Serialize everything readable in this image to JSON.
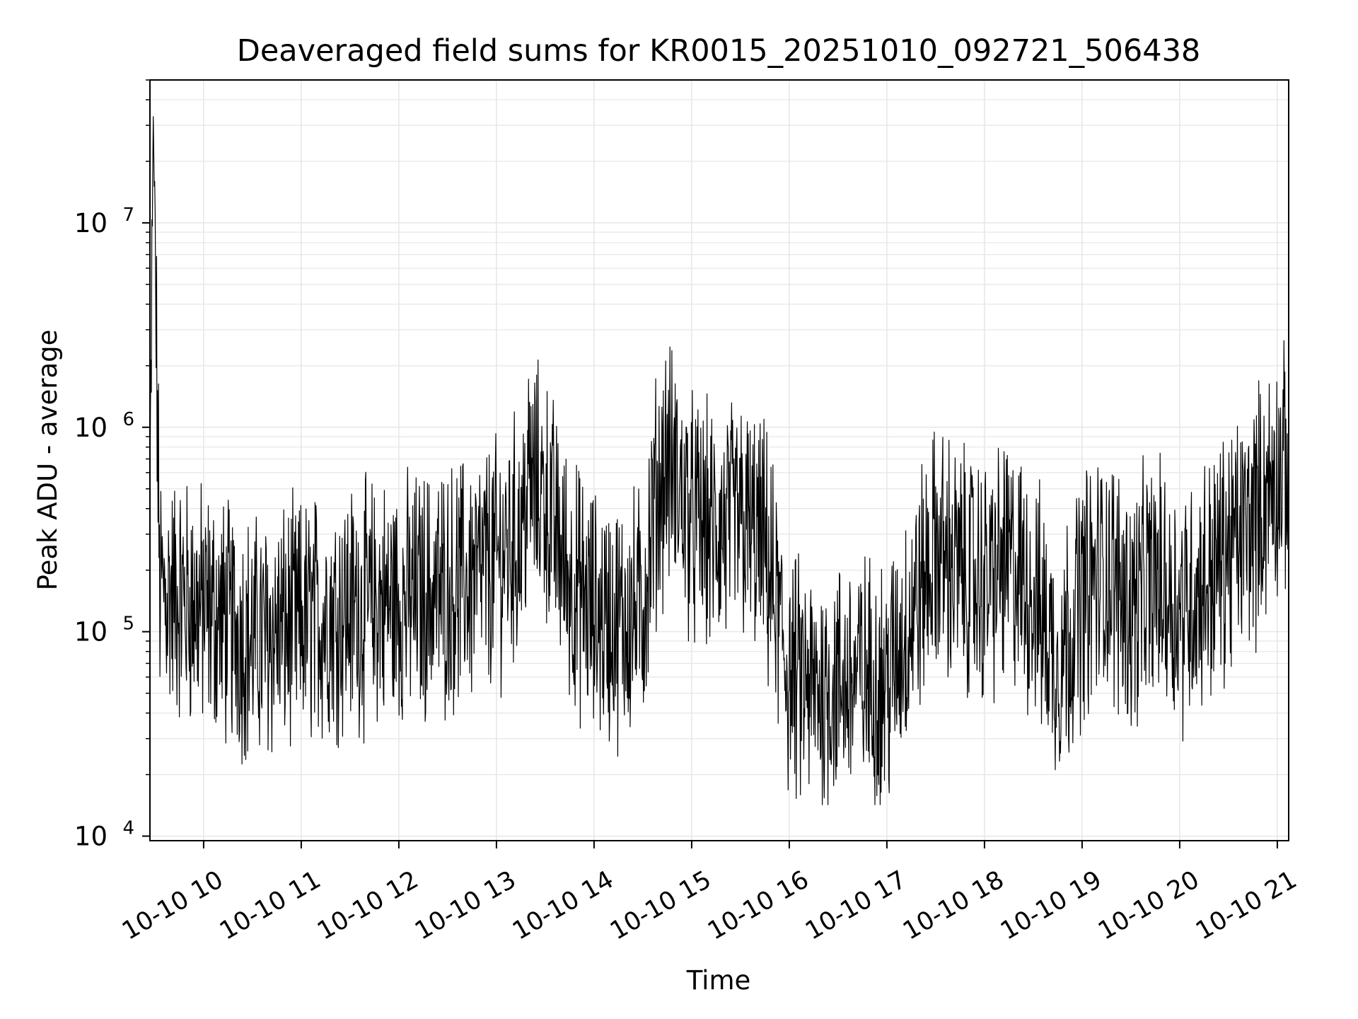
{
  "chart_data": {
    "type": "line",
    "title": "Deaveraged field sums for KR0015_20251010_092721_506438",
    "xlabel": "Time",
    "ylabel": "Peak ADU - average",
    "yscale": "log",
    "ylim": [
      9500,
      50000000
    ],
    "xlim": [
      "2025-10-10T09:27",
      "2025-10-10T21:07"
    ],
    "grid": true,
    "x_tick_labels": [
      "10-10 10",
      "10-10 11",
      "10-10 12",
      "10-10 13",
      "10-10 14",
      "10-10 15",
      "10-10 16",
      "10-10 17",
      "10-10 18",
      "10-10 19",
      "10-10 20",
      "10-10 21"
    ],
    "y_tick_labels": [
      {
        "value": 10000,
        "base": "10",
        "exp": "4"
      },
      {
        "value": 100000,
        "base": "10",
        "exp": "5"
      },
      {
        "value": 1000000,
        "base": "10",
        "exp": "6"
      },
      {
        "value": 10000000,
        "base": "10",
        "exp": "7"
      }
    ],
    "line_color": "#000000",
    "grid_color": "#e6e6e6",
    "series": [
      {
        "x": [
          "2025-10-10T09:27",
          "2025-10-10T09:29",
          "2025-10-10T09:33",
          "2025-10-10T09:40",
          "2025-10-10T09:50",
          "2025-10-10T10:00",
          "2025-10-10T10:15",
          "2025-10-10T10:30",
          "2025-10-10T10:45",
          "2025-10-10T11:00",
          "2025-10-10T11:15",
          "2025-10-10T11:30",
          "2025-10-10T11:45",
          "2025-10-10T12:00",
          "2025-10-10T12:15",
          "2025-10-10T12:30",
          "2025-10-10T12:45",
          "2025-10-10T13:00",
          "2025-10-10T13:15",
          "2025-10-10T13:20",
          "2025-10-10T13:30",
          "2025-10-10T13:45",
          "2025-10-10T14:00",
          "2025-10-10T14:15",
          "2025-10-10T14:30",
          "2025-10-10T14:37",
          "2025-10-10T14:45",
          "2025-10-10T15:00",
          "2025-10-10T15:15",
          "2025-10-10T15:30",
          "2025-10-10T15:45",
          "2025-10-10T16:00",
          "2025-10-10T16:15",
          "2025-10-10T16:30",
          "2025-10-10T16:45",
          "2025-10-10T17:00",
          "2025-10-10T17:15",
          "2025-10-10T17:30",
          "2025-10-10T17:45",
          "2025-10-10T18:00",
          "2025-10-10T18:15",
          "2025-10-10T18:30",
          "2025-10-10T18:45",
          "2025-10-10T19:00",
          "2025-10-10T19:15",
          "2025-10-10T19:30",
          "2025-10-10T19:45",
          "2025-10-10T20:00",
          "2025-10-10T20:15",
          "2025-10-10T20:30",
          "2025-10-10T20:45",
          "2025-10-10T21:00",
          "2025-10-10T21:07"
        ],
        "y": [
          300000,
          35000000,
          160000,
          150000,
          140000,
          130000,
          110000,
          90000,
          100000,
          110000,
          120000,
          130000,
          135000,
          140000,
          150000,
          160000,
          180000,
          220000,
          300000,
          550000,
          450000,
          180000,
          120000,
          110000,
          130000,
          400000,
          700000,
          350000,
          300000,
          350000,
          250000,
          60000,
          50000,
          55000,
          60000,
          55000,
          120000,
          250000,
          200000,
          170000,
          220000,
          150000,
          70000,
          150000,
          200000,
          130000,
          180000,
          130000,
          170000,
          250000,
          350000,
          600000,
          600000
        ]
      }
    ]
  }
}
